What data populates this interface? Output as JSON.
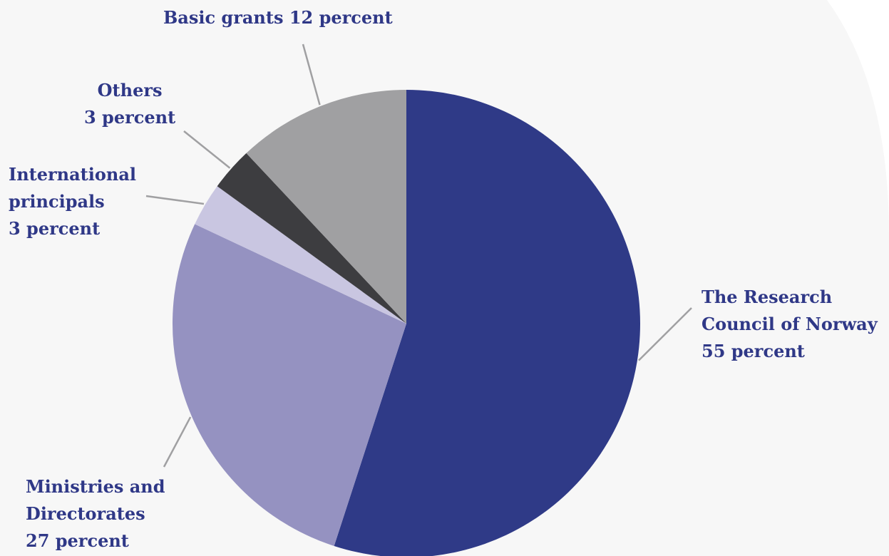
{
  "chart_data": {
    "type": "pie",
    "title": "",
    "slices": [
      {
        "label": "The Research Council of Norway",
        "value": 55,
        "color": "#2f3a87"
      },
      {
        "label": "Ministries and Directorates",
        "value": 27,
        "color": "#9592c1"
      },
      {
        "label": "International principals",
        "value": 3,
        "color": "#c9c6e1"
      },
      {
        "label": "Others",
        "value": 3,
        "color": "#3d3d40"
      },
      {
        "label": "Basic grants",
        "value": 12,
        "color": "#a0a0a2"
      }
    ],
    "start_position": "top",
    "direction": "clockwise"
  },
  "labels": {
    "basic": {
      "line1": "Basic grants 12 percent"
    },
    "others": {
      "line1": "Others",
      "line2": "3 percent"
    },
    "intl": {
      "line1": "International",
      "line2": "principals",
      "line3": "3 percent"
    },
    "ministries": {
      "line1": "Ministries and",
      "line2": "Directorates",
      "line3": "27 percent"
    },
    "rcn": {
      "line1": "The Research",
      "line2": "Council of Norway",
      "line3": "55 percent"
    }
  },
  "colors": {
    "background": "#f7f7f7",
    "label_text": "#2f3887",
    "leader_line": "#a0a0a2"
  }
}
